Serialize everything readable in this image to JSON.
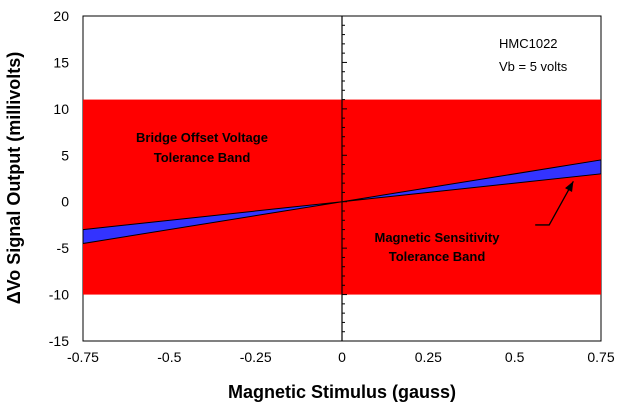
{
  "chart_data": {
    "type": "area",
    "xlabel": "Magnetic Stimulus (gauss)",
    "ylabel": "ΔVo Signal Output (millivolts)",
    "xlim": [
      -0.75,
      0.75
    ],
    "ylim": [
      -15,
      20
    ],
    "x_ticks": [
      "-0.75",
      "-0.5",
      "-0.25",
      "0",
      "0.25",
      "0.5",
      "0.75"
    ],
    "y_ticks": [
      "20",
      "15",
      "10",
      "5",
      "0",
      "-5",
      "-10",
      "-15"
    ],
    "grid": false,
    "annotations": {
      "device": "HMC1022",
      "supply": "Vb = 5 volts",
      "offset_band_line1": "Bridge Offset Voltage",
      "offset_band_line2": "Tolerance Band",
      "sensitivity_band_line1": "Magnetic Sensitivity",
      "sensitivity_band_line2": "Tolerance Band"
    },
    "bands": [
      {
        "id": "offset",
        "y_range": [
          -10,
          11
        ],
        "x_range": [
          -0.75,
          0.75
        ],
        "color": "#ff0000"
      },
      {
        "id": "sensitivity",
        "color": "#3333ff",
        "upper": {
          "x": [
            -0.75,
            0,
            0.75
          ],
          "y": [
            -3.0,
            0,
            4.5
          ]
        },
        "lower": {
          "x": [
            -0.75,
            0,
            0.75
          ],
          "y": [
            -4.5,
            0,
            3.0
          ]
        }
      }
    ],
    "arrow": {
      "from": [
        0.6,
        -2.5
      ],
      "to": [
        0.67,
        2.2
      ]
    }
  }
}
